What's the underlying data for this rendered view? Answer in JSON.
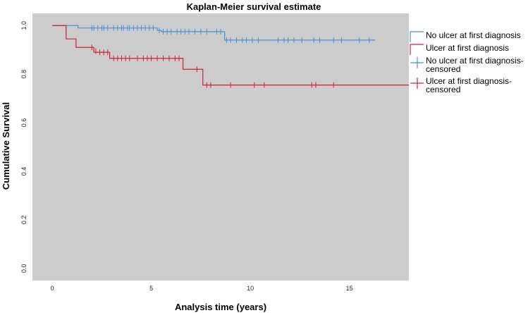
{
  "chart_data": {
    "type": "line",
    "title": "Kaplan-Meier survival estimate",
    "xlabel": "Analysis time (years)",
    "ylabel": "Cumulative Survival",
    "xlim": [
      -1,
      18
    ],
    "ylim": [
      -0.05,
      1.05
    ],
    "xticks": [
      0,
      5,
      10,
      15
    ],
    "xtick_labels": [
      "0",
      "5",
      "10",
      "15"
    ],
    "yticks": [
      0.0,
      0.2,
      0.4,
      0.6,
      0.8,
      1.0
    ],
    "ytick_labels": [
      "0.0",
      "0.2",
      "0.4",
      "0.6",
      "0.8",
      "1.0"
    ],
    "background": "#cccccc",
    "grid": false,
    "legend_position": "right",
    "legend": [
      {
        "lines": [
          "No ulcer at first diagnosis"
        ],
        "kind": "step",
        "color": "#4a90d9"
      },
      {
        "lines": [
          "Ulcer at first diagnosis"
        ],
        "kind": "step",
        "color": "#d4203c"
      },
      {
        "lines": [
          "No ulcer at first diagnosis-",
          "censored"
        ],
        "kind": "censor",
        "color": "#4a90d9"
      },
      {
        "lines": [
          "Ulcer at first diagnosis-",
          "censored"
        ],
        "kind": "censor",
        "color": "#d4203c"
      }
    ],
    "series": [
      {
        "name": "No ulcer at first diagnosis",
        "color": "#4a90d9",
        "steps": [
          [
            0,
            1.0
          ],
          [
            1.3,
            0.99
          ],
          [
            5.3,
            0.98
          ],
          [
            5.5,
            0.975
          ],
          [
            8.7,
            0.94
          ],
          [
            16.3,
            0.94
          ]
        ],
        "censored": [
          [
            2.0,
            0.99
          ],
          [
            2.1,
            0.99
          ],
          [
            2.3,
            0.99
          ],
          [
            2.5,
            0.99
          ],
          [
            2.6,
            0.99
          ],
          [
            2.8,
            0.99
          ],
          [
            3.1,
            0.99
          ],
          [
            3.3,
            0.99
          ],
          [
            3.5,
            0.99
          ],
          [
            3.6,
            0.99
          ],
          [
            3.8,
            0.99
          ],
          [
            3.9,
            0.99
          ],
          [
            4.1,
            0.99
          ],
          [
            4.3,
            0.99
          ],
          [
            4.5,
            0.99
          ],
          [
            4.7,
            0.99
          ],
          [
            4.9,
            0.99
          ],
          [
            5.1,
            0.99
          ],
          [
            5.4,
            0.98
          ],
          [
            5.6,
            0.975
          ],
          [
            5.8,
            0.975
          ],
          [
            6.0,
            0.975
          ],
          [
            6.3,
            0.975
          ],
          [
            6.5,
            0.975
          ],
          [
            6.7,
            0.975
          ],
          [
            6.9,
            0.975
          ],
          [
            7.2,
            0.975
          ],
          [
            7.5,
            0.975
          ],
          [
            7.8,
            0.975
          ],
          [
            8.3,
            0.975
          ],
          [
            8.5,
            0.975
          ],
          [
            8.8,
            0.94
          ],
          [
            9.0,
            0.94
          ],
          [
            9.3,
            0.94
          ],
          [
            9.6,
            0.94
          ],
          [
            9.8,
            0.94
          ],
          [
            10.1,
            0.94
          ],
          [
            10.4,
            0.94
          ],
          [
            11.4,
            0.94
          ],
          [
            11.7,
            0.94
          ],
          [
            11.9,
            0.94
          ],
          [
            12.2,
            0.94
          ],
          [
            12.6,
            0.94
          ],
          [
            13.2,
            0.94
          ],
          [
            13.5,
            0.94
          ],
          [
            14.2,
            0.94
          ],
          [
            14.6,
            0.94
          ],
          [
            15.5,
            0.94
          ],
          [
            16.0,
            0.94
          ]
        ]
      },
      {
        "name": "Ulcer at first diagnosis",
        "color": "#d4203c",
        "steps": [
          [
            0,
            1.0
          ],
          [
            0.7,
            0.945
          ],
          [
            1.2,
            0.91
          ],
          [
            2.1,
            0.89
          ],
          [
            2.9,
            0.865
          ],
          [
            6.6,
            0.82
          ],
          [
            7.6,
            0.755
          ],
          [
            18.0,
            0.755
          ]
        ],
        "censored": [
          [
            2.0,
            0.91
          ],
          [
            2.2,
            0.895
          ],
          [
            2.4,
            0.89
          ],
          [
            2.6,
            0.89
          ],
          [
            2.8,
            0.89
          ],
          [
            3.1,
            0.865
          ],
          [
            3.3,
            0.865
          ],
          [
            3.5,
            0.865
          ],
          [
            3.7,
            0.865
          ],
          [
            3.9,
            0.865
          ],
          [
            4.3,
            0.865
          ],
          [
            4.6,
            0.865
          ],
          [
            4.8,
            0.865
          ],
          [
            5.0,
            0.865
          ],
          [
            5.3,
            0.865
          ],
          [
            5.6,
            0.865
          ],
          [
            5.9,
            0.865
          ],
          [
            6.2,
            0.865
          ],
          [
            6.4,
            0.865
          ],
          [
            7.3,
            0.82
          ],
          [
            7.8,
            0.755
          ],
          [
            8.0,
            0.755
          ],
          [
            9.0,
            0.755
          ],
          [
            10.2,
            0.755
          ],
          [
            10.7,
            0.755
          ],
          [
            13.1,
            0.755
          ],
          [
            13.3,
            0.755
          ],
          [
            14.2,
            0.755
          ]
        ]
      }
    ]
  }
}
